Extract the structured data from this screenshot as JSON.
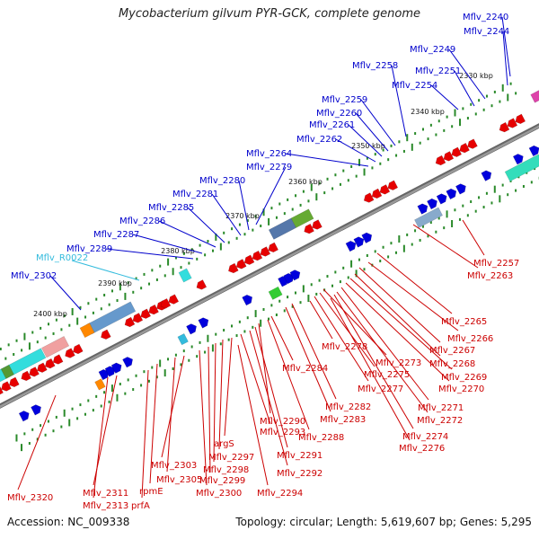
{
  "title": "Mycobacterium gilvum PYR-GCK, complete genome",
  "accession_text": "Accession: NC_009338",
  "summary_text": "Topology: circular; Length: 5,619,607 bp; Genes: 5,295",
  "colors": {
    "forward_label": "#0000cc",
    "reverse_label": "#cc0000",
    "rna_label": "#33bbdd",
    "backbone": "#888888",
    "tick": "#2a8a2a"
  },
  "scale_labels": [
    "2330 kbp",
    "2340 kbp",
    "2350 kbp",
    "2360 kbp",
    "2370 kbp",
    "2380 kbp",
    "2390 kbp",
    "2400 kbp"
  ],
  "forward_genes": [
    "Mflv_2240",
    "Mflv_2244",
    "Mflv_2249",
    "Mflv_2251",
    "Mflv_2254",
    "Mflv_2258",
    "Mflv_2259",
    "Mflv_2260",
    "Mflv_2261",
    "Mflv_2262",
    "Mflv_2264",
    "Mflv_2279",
    "Mflv_2280",
    "Mflv_2281",
    "Mflv_2285",
    "Mflv_2286",
    "Mflv_2287",
    "Mflv_2289",
    "Mflv_2302"
  ],
  "rna_genes": [
    "Mflv_R0022"
  ],
  "reverse_genes": [
    "Mflv_2257",
    "Mflv_2263",
    "Mflv_2265",
    "Mflv_2266",
    "Mflv_2267",
    "Mflv_2268",
    "Mflv_2269",
    "Mflv_2270",
    "Mflv_2271",
    "Mflv_2272",
    "Mflv_2274",
    "Mflv_2276",
    "Mflv_2273",
    "Mflv_2275",
    "Mflv_2277",
    "Mflv_2278",
    "Mflv_2282",
    "Mflv_2283",
    "Mflv_2284",
    "Mflv_2288",
    "Mflv_2290",
    "Mflv_2291",
    "Mflv_2292",
    "Mflv_2293",
    "argS",
    "Mflv_2297",
    "Mflv_2298",
    "Mflv_2299",
    "Mflv_2300",
    "Mflv_2294",
    "Mflv_2303",
    "Mflv_2305",
    "rpmE",
    "prfA",
    "Mflv_2311",
    "Mflv_2313",
    "Mflv_2320"
  ]
}
